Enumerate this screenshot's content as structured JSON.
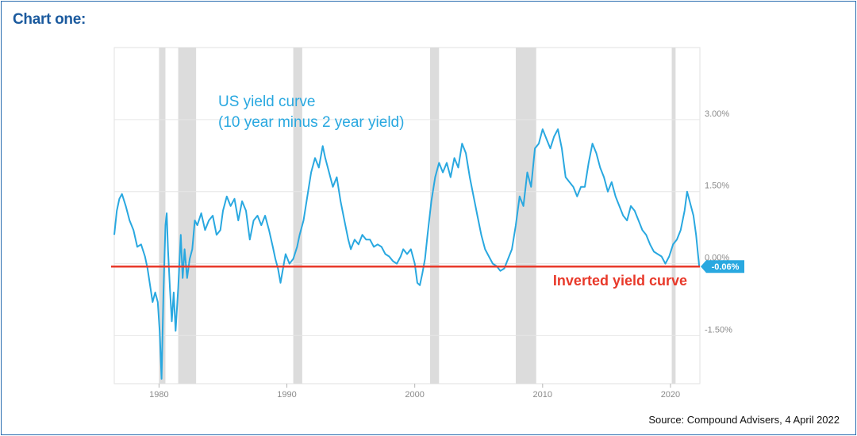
{
  "heading": "Chart one:",
  "source": "Source: Compound Advisers, 4 April 2022",
  "chart_data": {
    "type": "line",
    "title_lines": [
      "US yield curve",
      "(10 year minus 2 year yield)"
    ],
    "series": [
      {
        "values": [
          [
            1976.5,
            0.6
          ],
          [
            1976.7,
            1.1
          ],
          [
            1976.9,
            1.35
          ],
          [
            1977.1,
            1.45
          ],
          [
            1977.4,
            1.2
          ],
          [
            1977.7,
            0.9
          ],
          [
            1978.0,
            0.7
          ],
          [
            1978.3,
            0.35
          ],
          [
            1978.6,
            0.4
          ],
          [
            1978.9,
            0.15
          ],
          [
            1979.1,
            -0.1
          ],
          [
            1979.3,
            -0.45
          ],
          [
            1979.5,
            -0.8
          ],
          [
            1979.7,
            -0.6
          ],
          [
            1979.9,
            -0.8
          ],
          [
            1980.05,
            -1.4
          ],
          [
            1980.2,
            -2.4
          ],
          [
            1980.35,
            -0.6
          ],
          [
            1980.5,
            0.8
          ],
          [
            1980.6,
            1.05
          ],
          [
            1980.7,
            0.3
          ],
          [
            1980.85,
            -0.5
          ],
          [
            1981.0,
            -1.2
          ],
          [
            1981.15,
            -0.6
          ],
          [
            1981.3,
            -1.4
          ],
          [
            1981.5,
            -0.5
          ],
          [
            1981.7,
            0.6
          ],
          [
            1981.85,
            -0.3
          ],
          [
            1982.0,
            0.3
          ],
          [
            1982.2,
            -0.3
          ],
          [
            1982.4,
            0.1
          ],
          [
            1982.6,
            0.3
          ],
          [
            1982.8,
            0.9
          ],
          [
            1983.0,
            0.8
          ],
          [
            1983.3,
            1.05
          ],
          [
            1983.6,
            0.7
          ],
          [
            1983.9,
            0.9
          ],
          [
            1984.2,
            1.0
          ],
          [
            1984.5,
            0.6
          ],
          [
            1984.8,
            0.7
          ],
          [
            1985.0,
            1.1
          ],
          [
            1985.3,
            1.4
          ],
          [
            1985.6,
            1.2
          ],
          [
            1985.9,
            1.35
          ],
          [
            1986.2,
            0.9
          ],
          [
            1986.5,
            1.3
          ],
          [
            1986.8,
            1.1
          ],
          [
            1987.1,
            0.5
          ],
          [
            1987.4,
            0.9
          ],
          [
            1987.7,
            1.0
          ],
          [
            1988.0,
            0.8
          ],
          [
            1988.3,
            1.0
          ],
          [
            1988.6,
            0.7
          ],
          [
            1988.9,
            0.35
          ],
          [
            1989.1,
            0.1
          ],
          [
            1989.3,
            -0.1
          ],
          [
            1989.5,
            -0.4
          ],
          [
            1989.7,
            -0.1
          ],
          [
            1989.9,
            0.2
          ],
          [
            1990.2,
            0.0
          ],
          [
            1990.5,
            0.1
          ],
          [
            1990.8,
            0.35
          ],
          [
            1991.0,
            0.6
          ],
          [
            1991.3,
            0.9
          ],
          [
            1991.6,
            1.4
          ],
          [
            1991.9,
            1.9
          ],
          [
            1992.2,
            2.2
          ],
          [
            1992.5,
            2.0
          ],
          [
            1992.8,
            2.45
          ],
          [
            1993.0,
            2.2
          ],
          [
            1993.3,
            1.9
          ],
          [
            1993.6,
            1.6
          ],
          [
            1993.9,
            1.8
          ],
          [
            1994.2,
            1.3
          ],
          [
            1994.5,
            0.9
          ],
          [
            1994.8,
            0.5
          ],
          [
            1995.0,
            0.3
          ],
          [
            1995.3,
            0.5
          ],
          [
            1995.6,
            0.4
          ],
          [
            1995.9,
            0.6
          ],
          [
            1996.2,
            0.5
          ],
          [
            1996.5,
            0.5
          ],
          [
            1996.8,
            0.35
          ],
          [
            1997.1,
            0.4
          ],
          [
            1997.4,
            0.35
          ],
          [
            1997.7,
            0.2
          ],
          [
            1998.0,
            0.15
          ],
          [
            1998.3,
            0.05
          ],
          [
            1998.6,
            0.0
          ],
          [
            1998.9,
            0.15
          ],
          [
            1999.1,
            0.3
          ],
          [
            1999.4,
            0.2
          ],
          [
            1999.7,
            0.3
          ],
          [
            2000.0,
            0.0
          ],
          [
            2000.2,
            -0.4
          ],
          [
            2000.4,
            -0.45
          ],
          [
            2000.6,
            -0.2
          ],
          [
            2000.8,
            0.1
          ],
          [
            2001.0,
            0.6
          ],
          [
            2001.3,
            1.3
          ],
          [
            2001.6,
            1.8
          ],
          [
            2001.9,
            2.1
          ],
          [
            2002.2,
            1.9
          ],
          [
            2002.5,
            2.1
          ],
          [
            2002.8,
            1.8
          ],
          [
            2003.1,
            2.2
          ],
          [
            2003.4,
            2.0
          ],
          [
            2003.7,
            2.5
          ],
          [
            2004.0,
            2.3
          ],
          [
            2004.3,
            1.8
          ],
          [
            2004.6,
            1.4
          ],
          [
            2004.9,
            1.0
          ],
          [
            2005.2,
            0.6
          ],
          [
            2005.5,
            0.3
          ],
          [
            2005.8,
            0.15
          ],
          [
            2006.1,
            0.0
          ],
          [
            2006.4,
            -0.05
          ],
          [
            2006.7,
            -0.15
          ],
          [
            2007.0,
            -0.1
          ],
          [
            2007.3,
            0.1
          ],
          [
            2007.6,
            0.3
          ],
          [
            2007.9,
            0.8
          ],
          [
            2008.2,
            1.4
          ],
          [
            2008.5,
            1.2
          ],
          [
            2008.8,
            1.9
          ],
          [
            2009.1,
            1.6
          ],
          [
            2009.4,
            2.4
          ],
          [
            2009.7,
            2.5
          ],
          [
            2010.0,
            2.8
          ],
          [
            2010.3,
            2.6
          ],
          [
            2010.6,
            2.4
          ],
          [
            2010.9,
            2.65
          ],
          [
            2011.2,
            2.8
          ],
          [
            2011.5,
            2.4
          ],
          [
            2011.8,
            1.8
          ],
          [
            2012.1,
            1.7
          ],
          [
            2012.4,
            1.6
          ],
          [
            2012.7,
            1.4
          ],
          [
            2013.0,
            1.6
          ],
          [
            2013.3,
            1.6
          ],
          [
            2013.6,
            2.1
          ],
          [
            2013.9,
            2.5
          ],
          [
            2014.2,
            2.3
          ],
          [
            2014.5,
            2.0
          ],
          [
            2014.8,
            1.8
          ],
          [
            2015.1,
            1.5
          ],
          [
            2015.4,
            1.7
          ],
          [
            2015.7,
            1.4
          ],
          [
            2016.0,
            1.2
          ],
          [
            2016.3,
            1.0
          ],
          [
            2016.6,
            0.9
          ],
          [
            2016.9,
            1.2
          ],
          [
            2017.2,
            1.1
          ],
          [
            2017.5,
            0.9
          ],
          [
            2017.8,
            0.7
          ],
          [
            2018.1,
            0.6
          ],
          [
            2018.4,
            0.4
          ],
          [
            2018.7,
            0.25
          ],
          [
            2019.0,
            0.2
          ],
          [
            2019.3,
            0.15
          ],
          [
            2019.6,
            0.0
          ],
          [
            2019.9,
            0.15
          ],
          [
            2020.2,
            0.4
          ],
          [
            2020.5,
            0.5
          ],
          [
            2020.8,
            0.7
          ],
          [
            2021.1,
            1.1
          ],
          [
            2021.3,
            1.5
          ],
          [
            2021.5,
            1.3
          ],
          [
            2021.8,
            1.0
          ],
          [
            2022.0,
            0.6
          ],
          [
            2022.15,
            0.2
          ],
          [
            2022.25,
            -0.06
          ]
        ]
      }
    ],
    "hlines": [
      {
        "y": -0.06,
        "label": "Inverted yield curve",
        "color": "#e8392a"
      }
    ],
    "recessions": [
      [
        1980.0,
        1980.5
      ],
      [
        1981.5,
        1982.9
      ],
      [
        1990.5,
        1991.2
      ],
      [
        2001.2,
        2001.9
      ],
      [
        2007.9,
        2009.5
      ],
      [
        2020.1,
        2020.4
      ]
    ],
    "xlim": [
      1976.5,
      2022.3
    ],
    "ylim": [
      -2.5,
      4.5
    ],
    "xticks": [
      {
        "value": 1980,
        "label": "1980"
      },
      {
        "value": 1990,
        "label": "1990"
      },
      {
        "value": 2000,
        "label": "2000"
      },
      {
        "value": 2010,
        "label": "2010"
      },
      {
        "value": 2020,
        "label": "2020"
      }
    ],
    "yticks": [
      {
        "value": 3.0,
        "label": "3.00%"
      },
      {
        "value": 1.5,
        "label": "1.50%"
      },
      {
        "value": 0.0,
        "label": "0.00%"
      },
      {
        "value": -1.5,
        "label": "-1.50%"
      }
    ],
    "last_value_label": "-0.06%",
    "grid": true,
    "colors": {
      "line": "#29a8e0",
      "recession": "#dcdcdc",
      "inverted": "#e8392a",
      "grid": "#e6e6e6",
      "badge": "#29a8e0"
    }
  }
}
